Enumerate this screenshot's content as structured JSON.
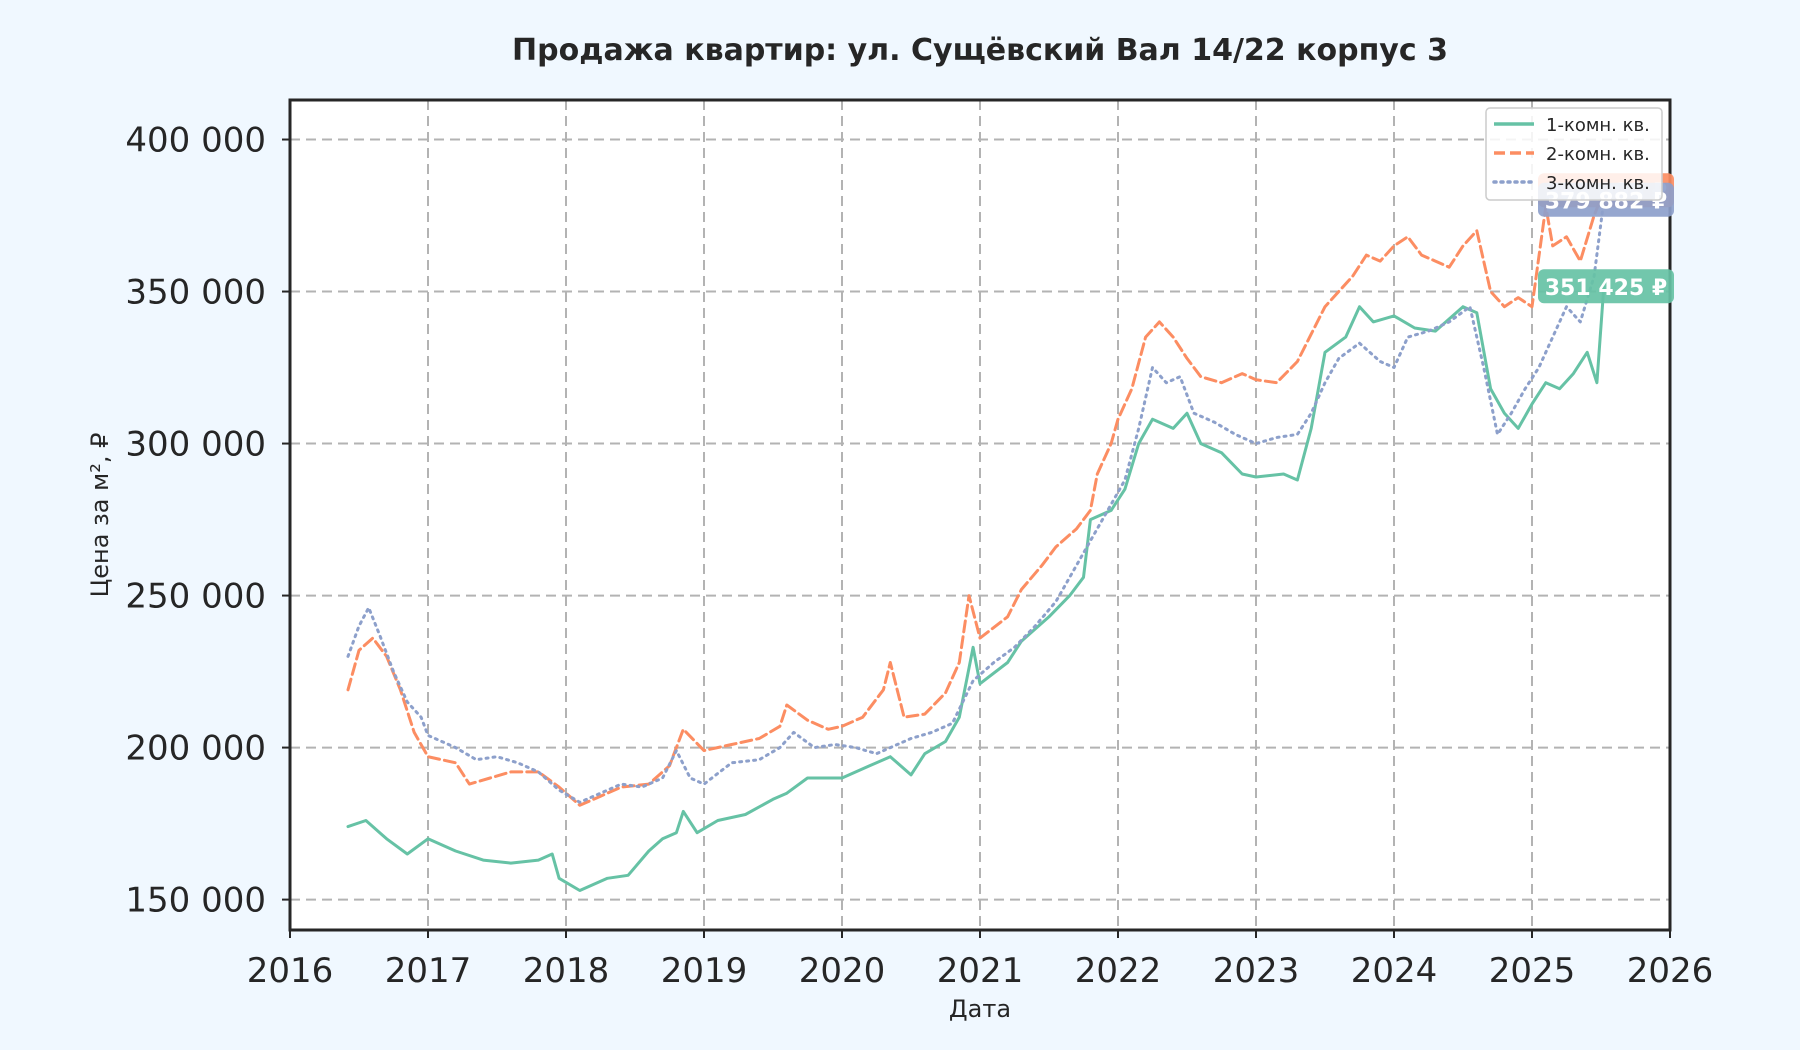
{
  "chart_data": {
    "type": "line",
    "title": "Продажа квартир: ул. Сущёвский Вал 14/22 корпус 3",
    "xlabel": "Дата",
    "ylabel": "Цена за м², ₽",
    "xlim": [
      2016,
      2026
    ],
    "ylim": [
      140000,
      413000
    ],
    "x_ticks": [
      2016,
      2017,
      2018,
      2019,
      2020,
      2021,
      2022,
      2023,
      2024,
      2025,
      2026
    ],
    "y_ticks": [
      150000,
      200000,
      250000,
      300000,
      350000,
      400000
    ],
    "y_tick_labels": [
      "150 000",
      "200 000",
      "250 000",
      "300 000",
      "350 000",
      "400 000"
    ],
    "grid": true,
    "legend_position": "top-right",
    "series": [
      {
        "name": "1-комн. кв.",
        "color": "#66c2a5",
        "dash": "solid",
        "end_label": "351 425 ₽",
        "points": [
          [
            2016.42,
            174000
          ],
          [
            2016.55,
            176000
          ],
          [
            2016.7,
            170000
          ],
          [
            2016.85,
            165000
          ],
          [
            2017.0,
            170000
          ],
          [
            2017.2,
            166000
          ],
          [
            2017.4,
            163000
          ],
          [
            2017.6,
            162000
          ],
          [
            2017.8,
            163000
          ],
          [
            2017.9,
            165000
          ],
          [
            2017.95,
            157000
          ],
          [
            2018.1,
            153000
          ],
          [
            2018.3,
            157000
          ],
          [
            2018.45,
            158000
          ],
          [
            2018.6,
            166000
          ],
          [
            2018.7,
            170000
          ],
          [
            2018.8,
            172000
          ],
          [
            2018.85,
            179000
          ],
          [
            2018.95,
            172000
          ],
          [
            2019.1,
            176000
          ],
          [
            2019.3,
            178000
          ],
          [
            2019.5,
            183000
          ],
          [
            2019.6,
            185000
          ],
          [
            2019.75,
            190000
          ],
          [
            2019.9,
            190000
          ],
          [
            2020.0,
            190000
          ],
          [
            2020.2,
            194000
          ],
          [
            2020.35,
            197000
          ],
          [
            2020.5,
            191000
          ],
          [
            2020.6,
            198000
          ],
          [
            2020.75,
            202000
          ],
          [
            2020.85,
            210000
          ],
          [
            2020.95,
            233000
          ],
          [
            2021.0,
            221000
          ],
          [
            2021.2,
            228000
          ],
          [
            2021.3,
            235000
          ],
          [
            2021.5,
            243000
          ],
          [
            2021.65,
            250000
          ],
          [
            2021.75,
            256000
          ],
          [
            2021.8,
            275000
          ],
          [
            2021.95,
            278000
          ],
          [
            2022.05,
            285000
          ],
          [
            2022.15,
            300000
          ],
          [
            2022.25,
            308000
          ],
          [
            2022.4,
            305000
          ],
          [
            2022.5,
            310000
          ],
          [
            2022.6,
            300000
          ],
          [
            2022.75,
            297000
          ],
          [
            2022.9,
            290000
          ],
          [
            2023.0,
            289000
          ],
          [
            2023.2,
            290000
          ],
          [
            2023.3,
            288000
          ],
          [
            2023.4,
            305000
          ],
          [
            2023.5,
            330000
          ],
          [
            2023.65,
            335000
          ],
          [
            2023.75,
            345000
          ],
          [
            2023.85,
            340000
          ],
          [
            2024.0,
            342000
          ],
          [
            2024.15,
            338000
          ],
          [
            2024.3,
            337000
          ],
          [
            2024.5,
            345000
          ],
          [
            2024.6,
            343000
          ],
          [
            2024.7,
            318000
          ],
          [
            2024.8,
            310000
          ],
          [
            2024.9,
            305000
          ],
          [
            2025.0,
            313000
          ],
          [
            2025.1,
            320000
          ],
          [
            2025.2,
            318000
          ],
          [
            2025.3,
            323000
          ],
          [
            2025.4,
            330000
          ],
          [
            2025.47,
            320000
          ],
          [
            2025.52,
            351425
          ]
        ]
      },
      {
        "name": "2-комн. кв.",
        "color": "#fc8d62",
        "dash": "dashed",
        "end_label": "383 000 ₽",
        "points": [
          [
            2016.42,
            219000
          ],
          [
            2016.5,
            232000
          ],
          [
            2016.6,
            236000
          ],
          [
            2016.7,
            230000
          ],
          [
            2016.8,
            219000
          ],
          [
            2016.9,
            205000
          ],
          [
            2017.0,
            197000
          ],
          [
            2017.2,
            195000
          ],
          [
            2017.3,
            188000
          ],
          [
            2017.45,
            190000
          ],
          [
            2017.6,
            192000
          ],
          [
            2017.8,
            192000
          ],
          [
            2017.95,
            187000
          ],
          [
            2018.1,
            181000
          ],
          [
            2018.25,
            184000
          ],
          [
            2018.4,
            187000
          ],
          [
            2018.6,
            188000
          ],
          [
            2018.75,
            194000
          ],
          [
            2018.85,
            206000
          ],
          [
            2019.0,
            199000
          ],
          [
            2019.2,
            201000
          ],
          [
            2019.4,
            203000
          ],
          [
            2019.55,
            207000
          ],
          [
            2019.6,
            214000
          ],
          [
            2019.75,
            209000
          ],
          [
            2019.9,
            206000
          ],
          [
            2020.0,
            207000
          ],
          [
            2020.15,
            210000
          ],
          [
            2020.3,
            219000
          ],
          [
            2020.35,
            228000
          ],
          [
            2020.45,
            210000
          ],
          [
            2020.6,
            211000
          ],
          [
            2020.75,
            218000
          ],
          [
            2020.85,
            228000
          ],
          [
            2020.92,
            250000
          ],
          [
            2021.0,
            236000
          ],
          [
            2021.2,
            243000
          ],
          [
            2021.3,
            252000
          ],
          [
            2021.45,
            260000
          ],
          [
            2021.55,
            266000
          ],
          [
            2021.7,
            272000
          ],
          [
            2021.8,
            278000
          ],
          [
            2021.85,
            290000
          ],
          [
            2021.95,
            300000
          ],
          [
            2022.0,
            308000
          ],
          [
            2022.1,
            318000
          ],
          [
            2022.2,
            335000
          ],
          [
            2022.3,
            340000
          ],
          [
            2022.4,
            335000
          ],
          [
            2022.5,
            328000
          ],
          [
            2022.6,
            322000
          ],
          [
            2022.75,
            320000
          ],
          [
            2022.9,
            323000
          ],
          [
            2023.0,
            321000
          ],
          [
            2023.15,
            320000
          ],
          [
            2023.3,
            327000
          ],
          [
            2023.4,
            336000
          ],
          [
            2023.5,
            345000
          ],
          [
            2023.6,
            350000
          ],
          [
            2023.7,
            355000
          ],
          [
            2023.8,
            362000
          ],
          [
            2023.9,
            360000
          ],
          [
            2024.0,
            365000
          ],
          [
            2024.1,
            368000
          ],
          [
            2024.2,
            362000
          ],
          [
            2024.3,
            360000
          ],
          [
            2024.4,
            358000
          ],
          [
            2024.5,
            365000
          ],
          [
            2024.6,
            370000
          ],
          [
            2024.7,
            350000
          ],
          [
            2024.8,
            345000
          ],
          [
            2024.9,
            348000
          ],
          [
            2025.0,
            345000
          ],
          [
            2025.1,
            378000
          ],
          [
            2025.15,
            365000
          ],
          [
            2025.25,
            368000
          ],
          [
            2025.35,
            360000
          ],
          [
            2025.45,
            375000
          ],
          [
            2025.52,
            383000
          ]
        ]
      },
      {
        "name": "3-комн. кв.",
        "color": "#8da0cb",
        "dash": "dotted",
        "end_label": "379 882 ₽",
        "points": [
          [
            2016.42,
            230000
          ],
          [
            2016.5,
            240000
          ],
          [
            2016.57,
            246000
          ],
          [
            2016.65,
            237000
          ],
          [
            2016.75,
            225000
          ],
          [
            2016.85,
            215000
          ],
          [
            2016.95,
            210000
          ],
          [
            2017.0,
            204000
          ],
          [
            2017.2,
            200000
          ],
          [
            2017.35,
            196000
          ],
          [
            2017.5,
            197000
          ],
          [
            2017.65,
            195000
          ],
          [
            2017.8,
            192000
          ],
          [
            2017.95,
            186000
          ],
          [
            2018.1,
            182000
          ],
          [
            2018.25,
            185000
          ],
          [
            2018.4,
            188000
          ],
          [
            2018.55,
            187000
          ],
          [
            2018.7,
            190000
          ],
          [
            2018.8,
            199000
          ],
          [
            2018.9,
            190000
          ],
          [
            2019.0,
            188000
          ],
          [
            2019.2,
            195000
          ],
          [
            2019.4,
            196000
          ],
          [
            2019.55,
            200000
          ],
          [
            2019.65,
            205000
          ],
          [
            2019.8,
            200000
          ],
          [
            2019.95,
            201000
          ],
          [
            2020.1,
            200000
          ],
          [
            2020.25,
            198000
          ],
          [
            2020.35,
            200000
          ],
          [
            2020.5,
            203000
          ],
          [
            2020.65,
            205000
          ],
          [
            2020.8,
            208000
          ],
          [
            2020.95,
            222000
          ],
          [
            2021.1,
            228000
          ],
          [
            2021.25,
            233000
          ],
          [
            2021.4,
            240000
          ],
          [
            2021.55,
            248000
          ],
          [
            2021.65,
            256000
          ],
          [
            2021.8,
            268000
          ],
          [
            2021.95,
            280000
          ],
          [
            2022.05,
            288000
          ],
          [
            2022.15,
            305000
          ],
          [
            2022.25,
            325000
          ],
          [
            2022.35,
            320000
          ],
          [
            2022.45,
            322000
          ],
          [
            2022.55,
            310000
          ],
          [
            2022.7,
            307000
          ],
          [
            2022.85,
            303000
          ],
          [
            2023.0,
            300000
          ],
          [
            2023.15,
            302000
          ],
          [
            2023.3,
            303000
          ],
          [
            2023.4,
            310000
          ],
          [
            2023.5,
            320000
          ],
          [
            2023.6,
            328000
          ],
          [
            2023.75,
            333000
          ],
          [
            2023.9,
            327000
          ],
          [
            2024.0,
            325000
          ],
          [
            2024.1,
            335000
          ],
          [
            2024.25,
            337000
          ],
          [
            2024.4,
            340000
          ],
          [
            2024.55,
            345000
          ],
          [
            2024.65,
            325000
          ],
          [
            2024.75,
            303000
          ],
          [
            2024.85,
            310000
          ],
          [
            2024.95,
            318000
          ],
          [
            2025.05,
            325000
          ],
          [
            2025.15,
            335000
          ],
          [
            2025.25,
            345000
          ],
          [
            2025.35,
            340000
          ],
          [
            2025.45,
            355000
          ],
          [
            2025.52,
            379882
          ]
        ]
      }
    ]
  }
}
